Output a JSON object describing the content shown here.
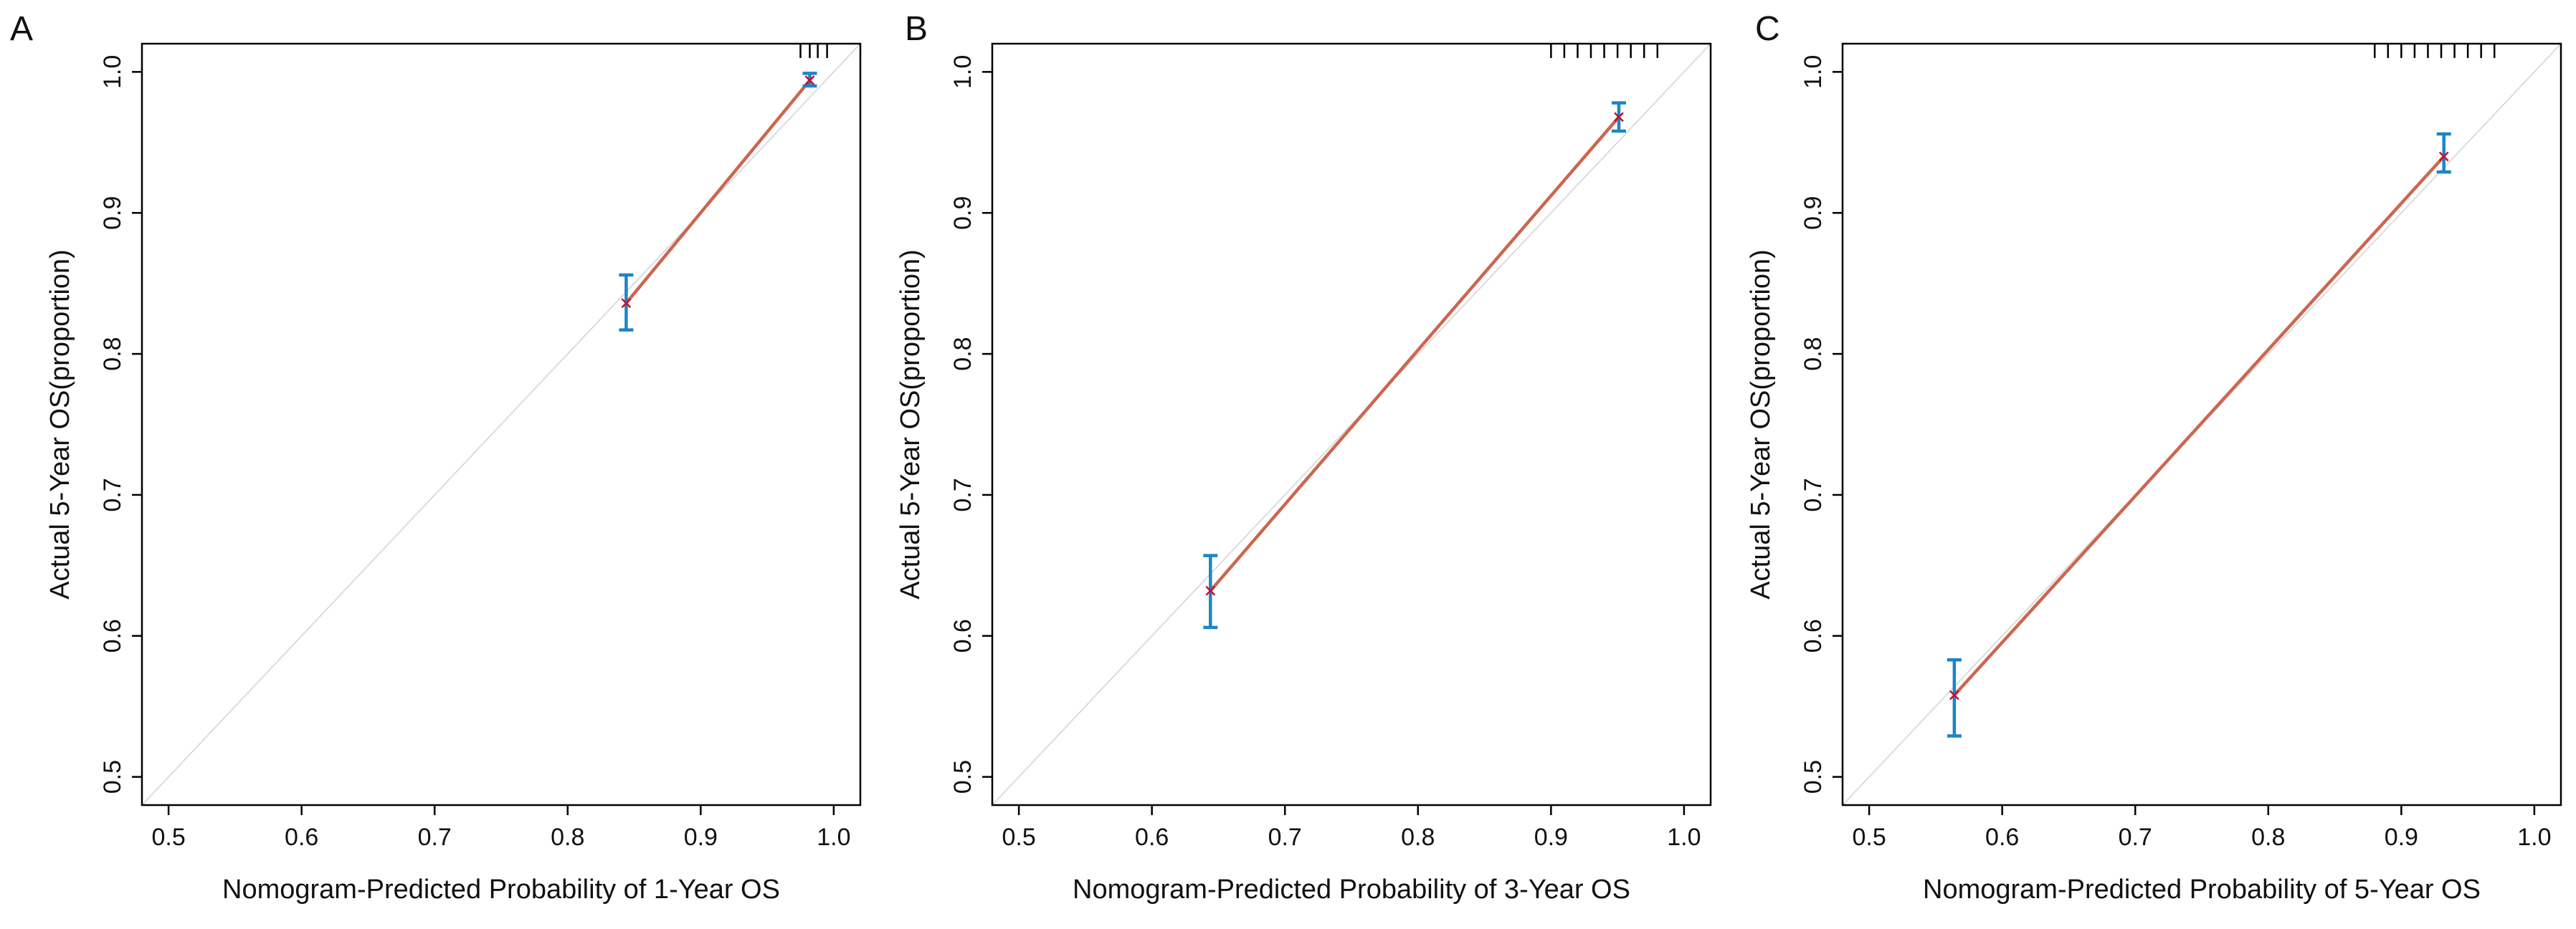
{
  "chart_data": [
    {
      "type": "line",
      "panel_label": "A",
      "title": "",
      "xlabel": "Nomogram-Predicted Probability of 1-Year OS",
      "ylabel": "Actual 5-Year OS(proportion)",
      "xlim": [
        0.48,
        1.02
      ],
      "ylim": [
        0.48,
        1.02
      ],
      "x_ticks": [
        0.5,
        0.6,
        0.7,
        0.8,
        0.9,
        1.0
      ],
      "x_tick_labels": [
        "0.5",
        "0.6",
        "0.7",
        "0.8",
        "0.9",
        "1.0"
      ],
      "y_ticks": [
        0.5,
        0.6,
        0.7,
        0.8,
        0.9,
        1.0
      ],
      "y_tick_labels": [
        "0.5",
        "0.6",
        "0.7",
        "0.8",
        "0.9",
        "1.0"
      ],
      "reference_line": {
        "from": [
          0.48,
          0.48
        ],
        "to": [
          1.02,
          1.02
        ]
      },
      "series": [
        {
          "name": "calibration",
          "x": [
            0.844,
            0.982
          ],
          "y": [
            0.836,
            0.994
          ]
        }
      ],
      "error_bars": [
        {
          "x": 0.844,
          "low": 0.817,
          "high": 0.856
        },
        {
          "x": 0.982,
          "low": 0.99,
          "high": 0.999
        }
      ],
      "rug": [
        0.975,
        0.982,
        0.988,
        0.995
      ]
    },
    {
      "type": "line",
      "panel_label": "B",
      "title": "",
      "xlabel": "Nomogram-Predicted Probability of 3-Year OS",
      "ylabel": "Actual 5-Year OS(proportion)",
      "xlim": [
        0.48,
        1.02
      ],
      "ylim": [
        0.48,
        1.02
      ],
      "x_ticks": [
        0.5,
        0.6,
        0.7,
        0.8,
        0.9,
        1.0
      ],
      "x_tick_labels": [
        "0.5",
        "0.6",
        "0.7",
        "0.8",
        "0.9",
        "1.0"
      ],
      "y_ticks": [
        0.5,
        0.6,
        0.7,
        0.8,
        0.9,
        1.0
      ],
      "y_tick_labels": [
        "0.5",
        "0.6",
        "0.7",
        "0.8",
        "0.9",
        "1.0"
      ],
      "reference_line": {
        "from": [
          0.48,
          0.48
        ],
        "to": [
          1.02,
          1.02
        ]
      },
      "series": [
        {
          "name": "calibration",
          "x": [
            0.644,
            0.951
          ],
          "y": [
            0.632,
            0.968
          ]
        }
      ],
      "error_bars": [
        {
          "x": 0.644,
          "low": 0.606,
          "high": 0.657
        },
        {
          "x": 0.951,
          "low": 0.958,
          "high": 0.978
        }
      ],
      "rug": [
        0.9,
        0.91,
        0.92,
        0.93,
        0.94,
        0.95,
        0.96,
        0.97,
        0.98
      ]
    },
    {
      "type": "line",
      "panel_label": "C",
      "title": "",
      "xlabel": "Nomogram-Predicted Probability of 5-Year OS",
      "ylabel": "Actual 5-Year OS(proportion)",
      "xlim": [
        0.48,
        1.02
      ],
      "ylim": [
        0.48,
        1.02
      ],
      "x_ticks": [
        0.5,
        0.6,
        0.7,
        0.8,
        0.9,
        1.0
      ],
      "x_tick_labels": [
        "0.5",
        "0.6",
        "0.7",
        "0.8",
        "0.9",
        "1.0"
      ],
      "y_ticks": [
        0.5,
        0.6,
        0.7,
        0.8,
        0.9,
        1.0
      ],
      "y_tick_labels": [
        "0.5",
        "0.6",
        "0.7",
        "0.8",
        "0.9",
        "1.0"
      ],
      "reference_line": {
        "from": [
          0.48,
          0.48
        ],
        "to": [
          1.02,
          1.02
        ]
      },
      "series": [
        {
          "name": "calibration",
          "x": [
            0.564,
            0.932
          ],
          "y": [
            0.558,
            0.94
          ]
        }
      ],
      "error_bars": [
        {
          "x": 0.564,
          "low": 0.529,
          "high": 0.583
        },
        {
          "x": 0.932,
          "low": 0.929,
          "high": 0.956
        }
      ],
      "rug": [
        0.88,
        0.89,
        0.9,
        0.91,
        0.92,
        0.93,
        0.94,
        0.95,
        0.96,
        0.97
      ]
    }
  ],
  "colors": {
    "fit_line": "#cc6650",
    "error_bar": "#1a86c8",
    "point": "#c8102e",
    "reference": "#dcdcdc",
    "axis": "#000000"
  }
}
